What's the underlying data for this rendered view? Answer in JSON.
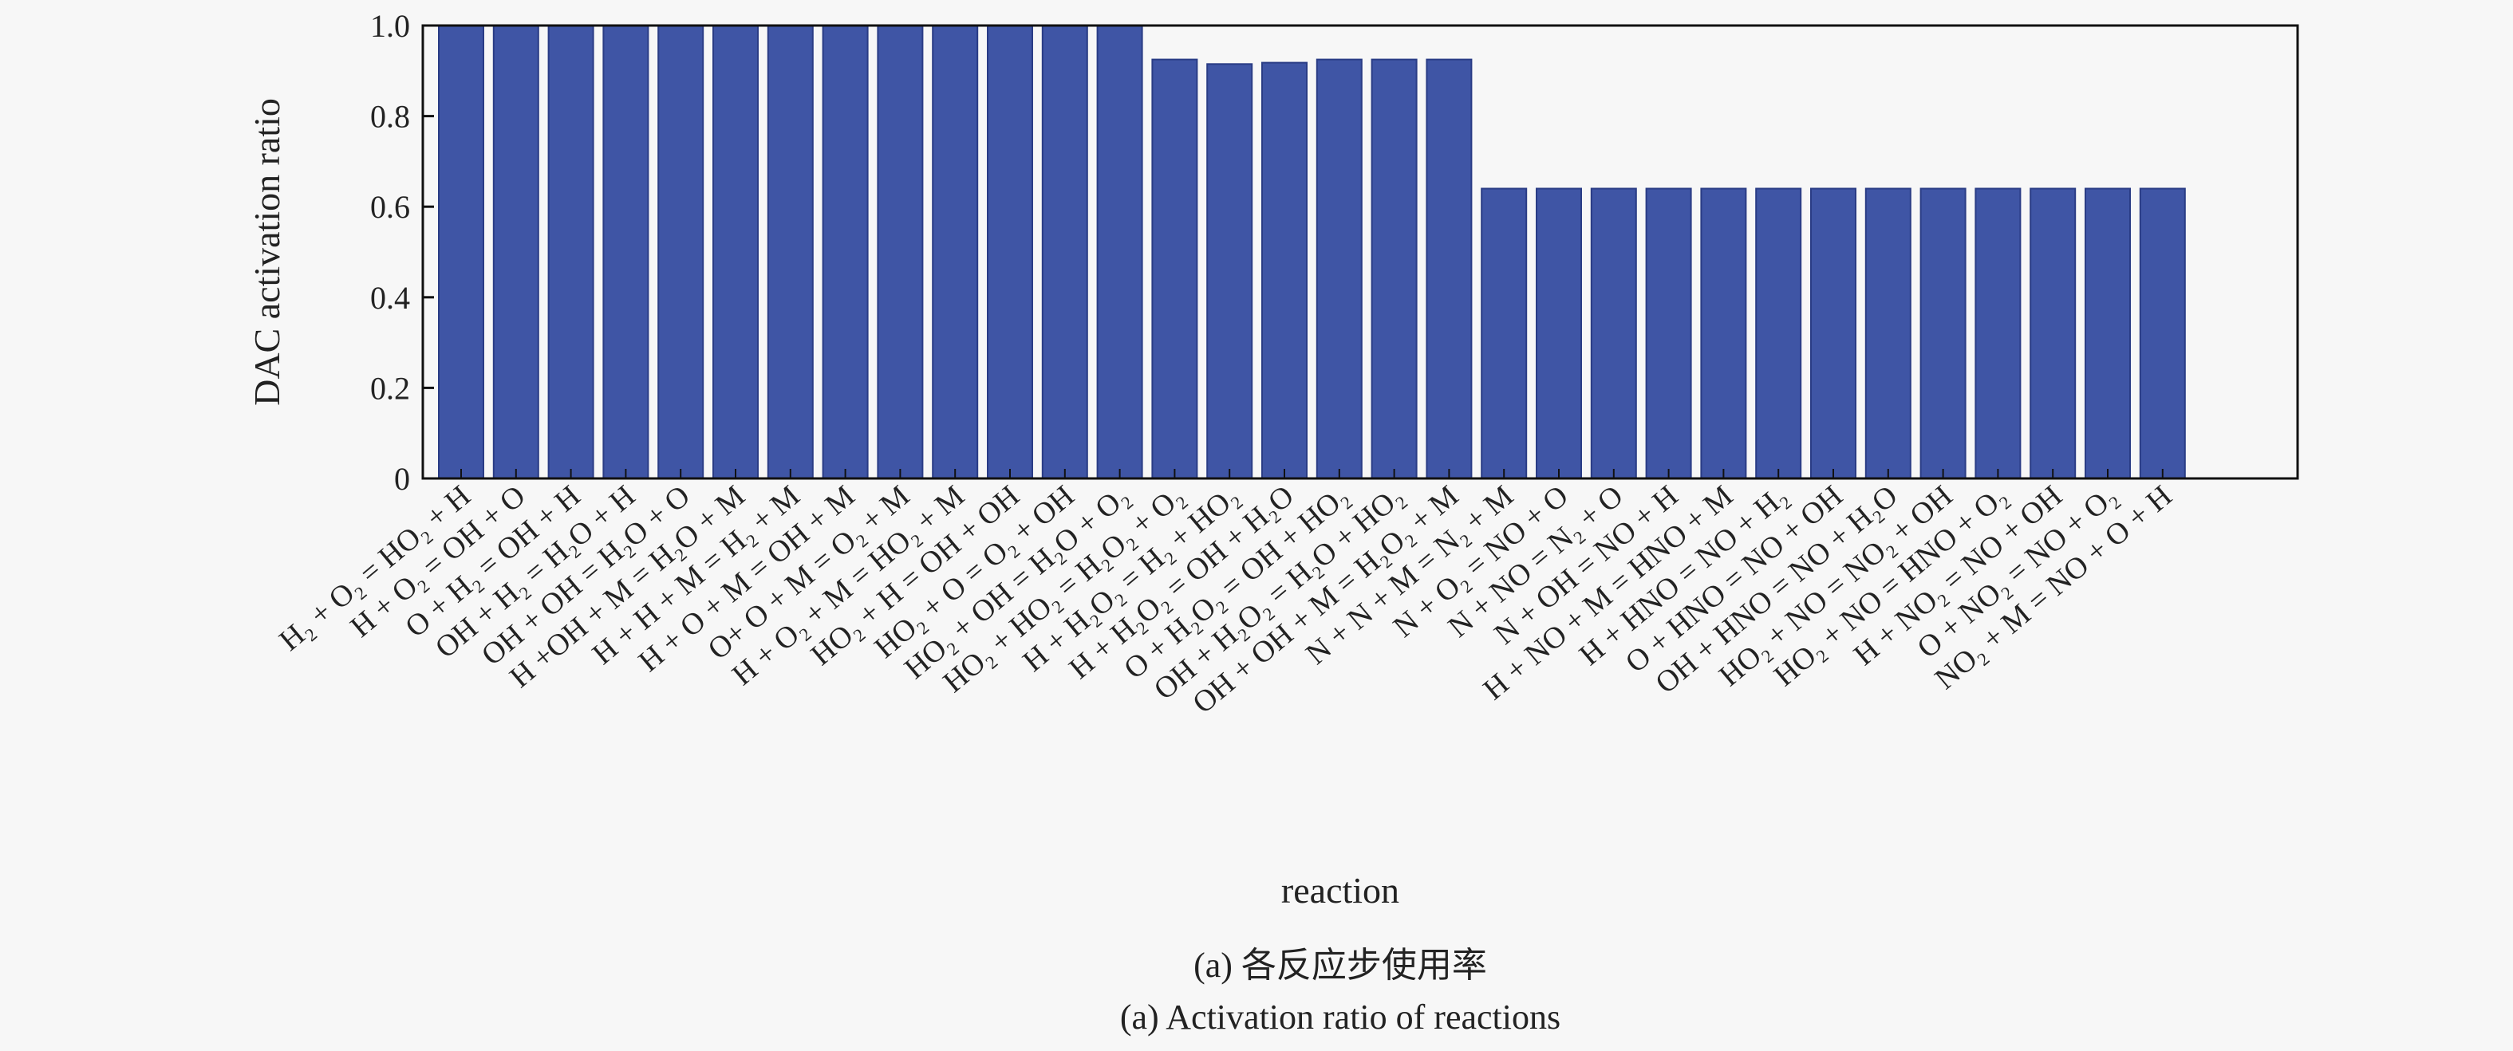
{
  "chart_data": {
    "type": "bar",
    "xlabel": "reaction",
    "ylabel": "DAC activation ratio",
    "ylim": [
      0,
      1.0
    ],
    "yticks": [
      "0",
      "0.2",
      "0.4",
      "0.6",
      "0.8",
      "1.0"
    ],
    "ytick_values": [
      0,
      0.2,
      0.4,
      0.6,
      0.8,
      1.0
    ],
    "grid": false,
    "bar_color": "#3f55a5",
    "categories": [
      "H₂ + O₂ = HO₂ + H",
      "H + O₂ = OH + O",
      "O + H₂ = OH + H",
      "OH + H₂ = H₂O + H",
      "OH + OH = H₂O + O",
      "H +OH + M = H₂O + M",
      "H + H + M = H₂ + M",
      "H + O + M = OH + M",
      "O+ O + M = O₂ + M",
      "H + O₂ + M = HO₂ + M",
      "HO₂ + H = OH + OH",
      "HO₂ + O = O₂ + OH",
      "HO₂ + OH = H₂O + O₂",
      "HO₂ + HO₂ = H₂O₂ + O₂",
      "H + H₂O₂ = H₂ + HO₂",
      "H + H₂O₂ = OH + H₂O",
      "O + H₂O₂ = OH + HO₂",
      "OH + H₂O₂ = H₂O + HO₂",
      "OH + OH + M = H₂O₂ + M",
      "N + N + M = N₂ + M",
      "N + O₂ = NO + O",
      "N + NO = N₂ + O",
      "N + OH = NO + H",
      "H + NO + M = HNO + M",
      "H + HNO = NO + H₂",
      "O + HNO = NO + OH",
      "OH + HNO = NO + H₂O",
      "HO₂ + NO = NO₂ + OH",
      "HO₂ + NO = HNO + O₂",
      "H + NO₂ = NO + OH",
      "O + NO₂ = NO + O₂",
      "NO₂ + M = NO + O + H"
    ],
    "values": [
      1.0,
      1.0,
      1.0,
      1.0,
      1.0,
      1.0,
      1.0,
      1.0,
      1.0,
      1.0,
      1.0,
      1.0,
      1.0,
      0.925,
      0.915,
      0.918,
      0.925,
      0.925,
      0.925,
      0.64,
      0.64,
      0.64,
      0.64,
      0.64,
      0.64,
      0.64,
      0.64,
      0.64,
      0.64,
      0.64,
      0.64,
      0.64
    ]
  },
  "captions": {
    "zh": "(a) 各反应步使用率",
    "en": "(a) Activation ratio of reactions"
  }
}
